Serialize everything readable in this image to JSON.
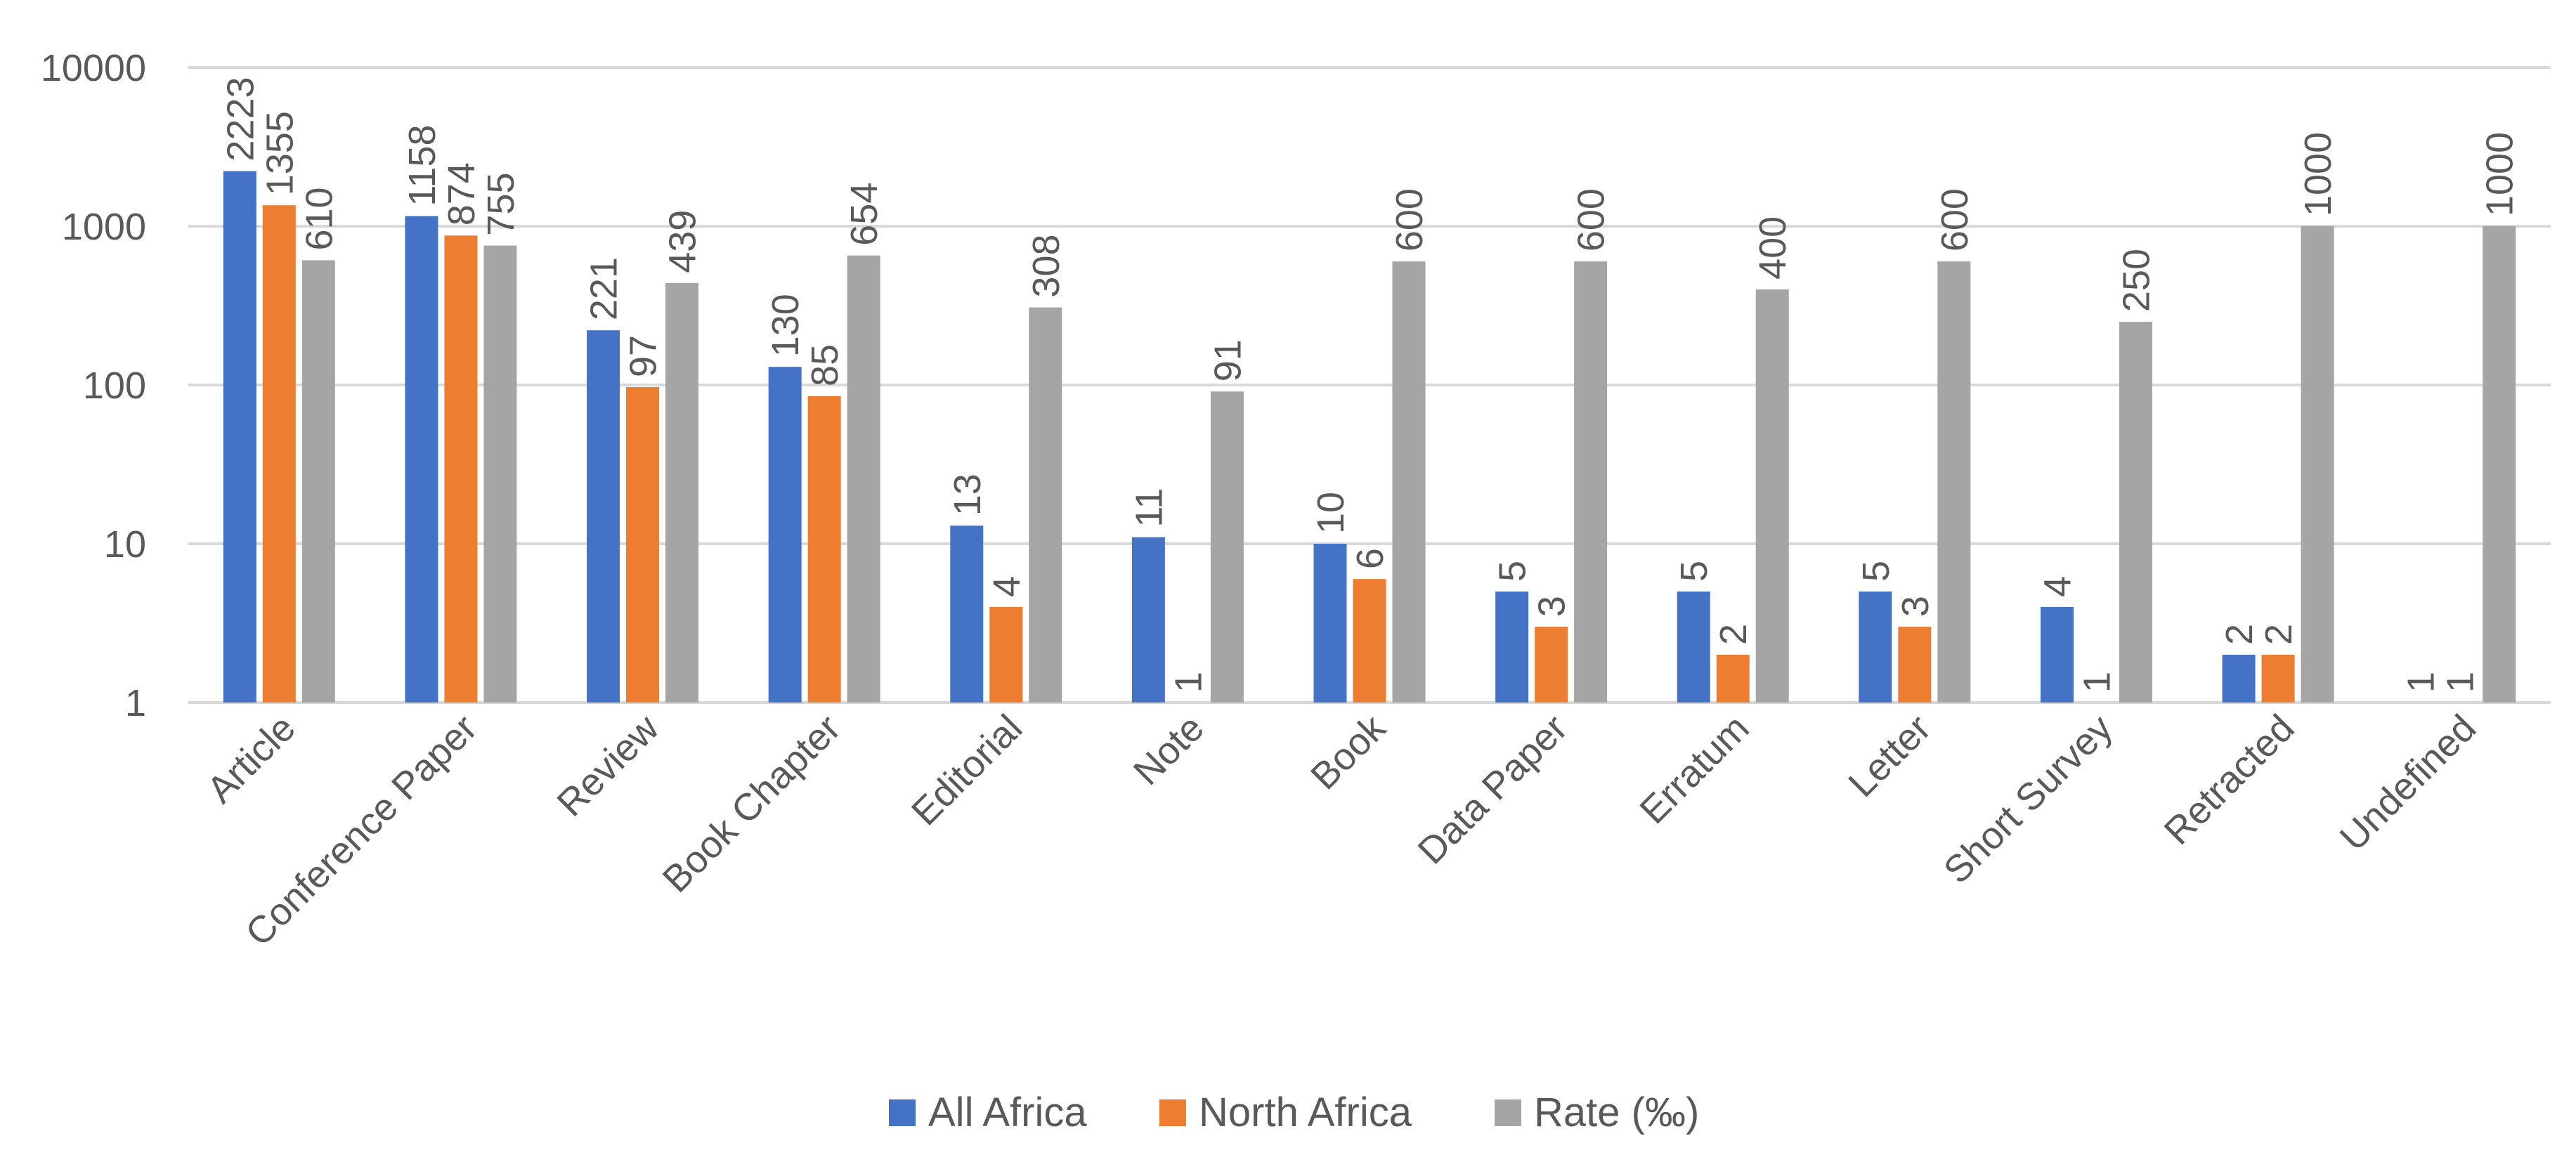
{
  "chart_data": {
    "type": "bar",
    "title": "",
    "xlabel": "",
    "ylabel": "",
    "y_scale": "log",
    "ylim": [
      1,
      10000
    ],
    "y_ticks": [
      "1",
      "10",
      "100",
      "1000",
      "10000"
    ],
    "grid": true,
    "legend_position": "bottom",
    "categories": [
      "Article",
      "Conference Paper",
      "Review",
      "Book Chapter",
      "Editorial",
      "Note",
      "Book",
      "Data Paper",
      "Erratum",
      "Letter",
      "Short Survey",
      "Retracted",
      "Undefined"
    ],
    "series": [
      {
        "name": "All Africa",
        "color": "#4472c4",
        "values": [
          2223,
          1158,
          221,
          130,
          13,
          11,
          10,
          5,
          5,
          5,
          4,
          2,
          1
        ]
      },
      {
        "name": "North Africa",
        "color": "#ed7d31",
        "values": [
          1355,
          874,
          97,
          85,
          4,
          1,
          6,
          3,
          2,
          3,
          1,
          2,
          1
        ]
      },
      {
        "name": "Rate (‰)",
        "color": "#a5a5a5",
        "values": [
          610,
          755,
          439,
          654,
          308,
          91,
          600,
          600,
          400,
          600,
          250,
          1000,
          1000
        ]
      }
    ]
  }
}
